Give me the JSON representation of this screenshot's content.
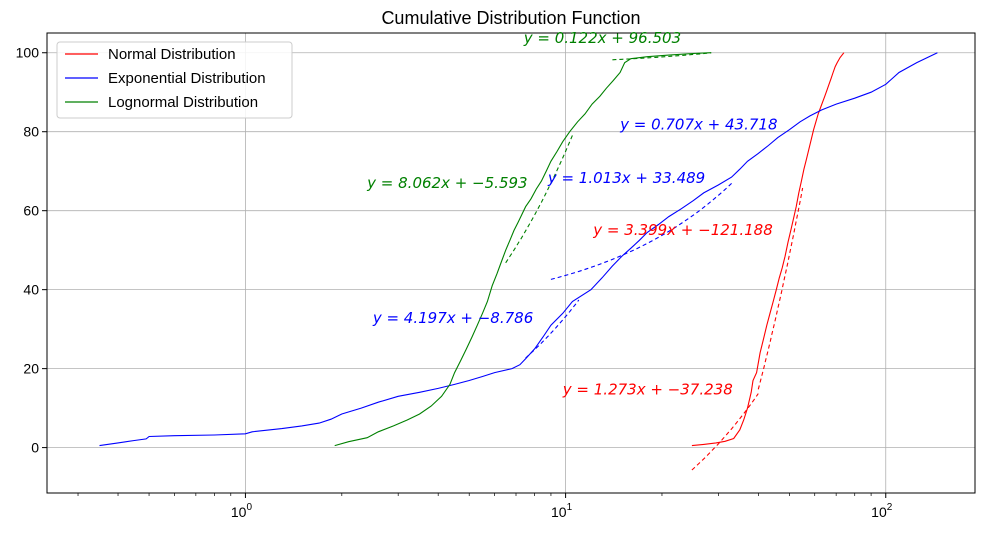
{
  "chart_data": {
    "type": "line",
    "title": "Cumulative Distribution Function",
    "xlabel": "",
    "ylabel": "",
    "xscale": "log",
    "xlim": [
      0.24,
      190
    ],
    "ylim": [
      -11.5,
      105
    ],
    "xticks": [
      {
        "value": 1,
        "base": "10",
        "exp": "0"
      },
      {
        "value": 10,
        "base": "10",
        "exp": "1"
      },
      {
        "value": 100,
        "base": "10",
        "exp": "2"
      }
    ],
    "yticks": [
      0,
      20,
      40,
      60,
      80,
      100
    ],
    "grid": true,
    "legend_position": "top-left",
    "series": [
      {
        "name": "Normal Distribution",
        "color": "#ff0000",
        "points": [
          [
            24.8,
            0.5
          ],
          [
            27,
            0.8
          ],
          [
            29.5,
            1.2
          ],
          [
            31.5,
            1.6
          ],
          [
            33.5,
            2.3
          ],
          [
            35,
            4.5
          ],
          [
            36,
            7
          ],
          [
            37,
            10
          ],
          [
            38,
            14
          ],
          [
            38.5,
            17
          ],
          [
            39.5,
            19
          ],
          [
            40.5,
            24
          ],
          [
            41.5,
            27.5
          ],
          [
            42.5,
            31
          ],
          [
            43.5,
            34
          ],
          [
            44.5,
            37
          ],
          [
            45.5,
            40
          ],
          [
            46.5,
            43
          ],
          [
            47.5,
            45.5
          ],
          [
            48.5,
            48.5
          ],
          [
            49.5,
            52
          ],
          [
            50.5,
            55
          ],
          [
            51.5,
            58
          ],
          [
            52.5,
            61
          ],
          [
            53.5,
            64.5
          ],
          [
            54.5,
            67.5
          ],
          [
            55.5,
            70.5
          ],
          [
            56.5,
            73
          ],
          [
            57.5,
            75.5
          ],
          [
            58.5,
            78
          ],
          [
            59.5,
            80.5
          ],
          [
            60.5,
            82.5
          ],
          [
            61.5,
            84.5
          ],
          [
            62.5,
            86
          ],
          [
            63.5,
            87.5
          ],
          [
            64.5,
            89
          ],
          [
            65.5,
            90.5
          ],
          [
            66.5,
            92
          ],
          [
            67.5,
            93.5
          ],
          [
            68.5,
            95
          ],
          [
            69.5,
            96.5
          ],
          [
            70.5,
            97.5
          ],
          [
            72,
            98.8
          ],
          [
            74,
            100
          ]
        ]
      },
      {
        "name": "Exponential Distribution",
        "color": "#0000ff",
        "points": [
          [
            0.35,
            0.5
          ],
          [
            0.4,
            1.2
          ],
          [
            0.45,
            1.8
          ],
          [
            0.49,
            2.2
          ],
          [
            0.5,
            2.8
          ],
          [
            0.6,
            3
          ],
          [
            0.8,
            3.2
          ],
          [
            1,
            3.5
          ],
          [
            1.05,
            4
          ],
          [
            1.3,
            4.8
          ],
          [
            1.5,
            5.5
          ],
          [
            1.7,
            6.2
          ],
          [
            1.85,
            7.2
          ],
          [
            2,
            8.5
          ],
          [
            2.3,
            10
          ],
          [
            2.6,
            11.5
          ],
          [
            3,
            13
          ],
          [
            3.5,
            14
          ],
          [
            4,
            15
          ],
          [
            4.5,
            16
          ],
          [
            5,
            17
          ],
          [
            5.5,
            18
          ],
          [
            6,
            19
          ],
          [
            6.8,
            20
          ],
          [
            7.2,
            21
          ],
          [
            7.5,
            22.5
          ],
          [
            8,
            25
          ],
          [
            8.5,
            28
          ],
          [
            9,
            31
          ],
          [
            9.8,
            34
          ],
          [
            10.5,
            37
          ],
          [
            12,
            40
          ],
          [
            13,
            43
          ],
          [
            14,
            46
          ],
          [
            15,
            48.5
          ],
          [
            16,
            50.5
          ],
          [
            17,
            52.5
          ],
          [
            18,
            54.5
          ],
          [
            19.5,
            56.5
          ],
          [
            21,
            58.5
          ],
          [
            23,
            60.5
          ],
          [
            25,
            62.5
          ],
          [
            27,
            64.5
          ],
          [
            30,
            66.5
          ],
          [
            33,
            68.5
          ],
          [
            35,
            70.5
          ],
          [
            37,
            72.5
          ],
          [
            40,
            74.5
          ],
          [
            43,
            76.5
          ],
          [
            46,
            78.5
          ],
          [
            50,
            80.5
          ],
          [
            54,
            82.5
          ],
          [
            58,
            84
          ],
          [
            63,
            85.5
          ],
          [
            70,
            87
          ],
          [
            80,
            88.5
          ],
          [
            90,
            90
          ],
          [
            100,
            92
          ],
          [
            110,
            95
          ],
          [
            125,
            97.5
          ],
          [
            145,
            100
          ]
        ]
      },
      {
        "name": "Lognormal Distribution",
        "color": "#008000",
        "points": [
          [
            1.9,
            0.5
          ],
          [
            2.1,
            1.5
          ],
          [
            2.4,
            2.5
          ],
          [
            2.6,
            4
          ],
          [
            2.9,
            5.5
          ],
          [
            3.2,
            7
          ],
          [
            3.5,
            8.5
          ],
          [
            3.8,
            10.5
          ],
          [
            4.1,
            13
          ],
          [
            4.35,
            16
          ],
          [
            4.5,
            19
          ],
          [
            4.7,
            22
          ],
          [
            4.9,
            25
          ],
          [
            5.1,
            28
          ],
          [
            5.3,
            31
          ],
          [
            5.5,
            34
          ],
          [
            5.7,
            37
          ],
          [
            5.9,
            41
          ],
          [
            6.1,
            44
          ],
          [
            6.3,
            47
          ],
          [
            6.5,
            50
          ],
          [
            6.7,
            52.5
          ],
          [
            6.9,
            55
          ],
          [
            7.1,
            57
          ],
          [
            7.3,
            59
          ],
          [
            7.5,
            61
          ],
          [
            7.8,
            63
          ],
          [
            8.1,
            65.5
          ],
          [
            8.4,
            67.5
          ],
          [
            8.7,
            70
          ],
          [
            9,
            72.5
          ],
          [
            9.4,
            75
          ],
          [
            9.8,
            77.5
          ],
          [
            10.3,
            80
          ],
          [
            10.9,
            82.5
          ],
          [
            11.5,
            84.5
          ],
          [
            12.1,
            87
          ],
          [
            12.8,
            89
          ],
          [
            13.4,
            91
          ],
          [
            14.1,
            93
          ],
          [
            14.8,
            95
          ],
          [
            15.3,
            97.5
          ],
          [
            16,
            98.5
          ],
          [
            18,
            99
          ],
          [
            21,
            99.4
          ],
          [
            25,
            99.8
          ],
          [
            28.5,
            100
          ]
        ]
      }
    ],
    "fit_lines": [
      {
        "color": "#ff0000",
        "x": [
          24.8,
          40
        ],
        "slope": 1.273,
        "intercept": -37.238
      },
      {
        "color": "#ff0000",
        "x": [
          40,
          55
        ],
        "slope": 3.399,
        "intercept": -121.188
      },
      {
        "color": "#0000ff",
        "x": [
          7.5,
          11
        ],
        "slope": 4.197,
        "intercept": -8.786
      },
      {
        "color": "#0000ff",
        "x": [
          9,
          33
        ],
        "slope": 1.013,
        "intercept": 33.489
      },
      {
        "color": "#008000",
        "x": [
          6.5,
          10.5
        ],
        "slope": 8.062,
        "intercept": -5.593
      },
      {
        "color": "#008000",
        "x": [
          14,
          28.5
        ],
        "slope": 0.122,
        "intercept": 96.503
      }
    ],
    "annotations": [
      {
        "text": "y = 0.122x + 96.503",
        "color": "#008000",
        "x": 7.4,
        "y": 102.5
      },
      {
        "text": "y = 0.707x + 43.718",
        "color": "#0000ff",
        "x": 14.8,
        "y": 80.5
      },
      {
        "text": "y = 8.062x + −5.593",
        "color": "#008000",
        "x": 2.4,
        "y": 65.8
      },
      {
        "text": "y = 1.013x + 33.489",
        "color": "#0000ff",
        "x": 8.8,
        "y": 67
      },
      {
        "text": "y = 3.399x + −121.188",
        "color": "#ff0000",
        "x": 12.2,
        "y": 53.8
      },
      {
        "text": "y = 4.197x + −8.786",
        "color": "#0000ff",
        "x": 2.5,
        "y": 31.5
      },
      {
        "text": "y = 1.273x + −37.238",
        "color": "#ff0000",
        "x": 9.8,
        "y": 13.5
      }
    ]
  }
}
